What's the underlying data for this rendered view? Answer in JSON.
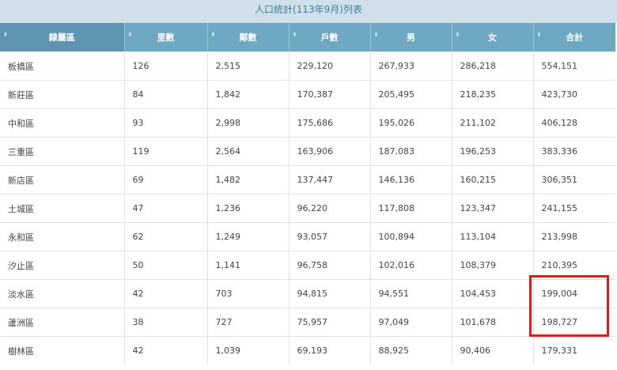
{
  "caption": "人口統計(113年9月)列表",
  "sort_icon": "⬍",
  "headers": [
    {
      "label": "隸屬區",
      "icon": "sort-icon"
    },
    {
      "label": "里數",
      "icon": "sort-icon"
    },
    {
      "label": "鄰數",
      "icon": "sort-icon"
    },
    {
      "label": "戶數",
      "icon": "sort-icon"
    },
    {
      "label": "男",
      "icon": "sort-icon"
    },
    {
      "label": "女",
      "icon": "sort-icon"
    },
    {
      "label": "合計",
      "icon": "sort-icon"
    }
  ],
  "rows": [
    [
      "板橋區",
      "126",
      "2,515",
      "229,120",
      "267,933",
      "286,218",
      "554,151"
    ],
    [
      "新莊區",
      "84",
      "1,842",
      "170,387",
      "205,495",
      "218,235",
      "423,730"
    ],
    [
      "中和區",
      "93",
      "2,998",
      "175,686",
      "195,026",
      "211,102",
      "406,128"
    ],
    [
      "三重區",
      "119",
      "2,564",
      "163,906",
      "187,083",
      "196,253",
      "383,336"
    ],
    [
      "新店區",
      "69",
      "1,482",
      "137,447",
      "146,136",
      "160,215",
      "306,351"
    ],
    [
      "土城區",
      "47",
      "1,236",
      "96,220",
      "117,808",
      "123,347",
      "241,155"
    ],
    [
      "永和區",
      "62",
      "1,249",
      "93,057",
      "100,894",
      "113,104",
      "213,998"
    ],
    [
      "汐止區",
      "50",
      "1,141",
      "96,758",
      "102,016",
      "108,379",
      "210,395"
    ],
    [
      "淡水區",
      "42",
      "703",
      "94,815",
      "94,551",
      "104,453",
      "199,004"
    ],
    [
      "蘆洲區",
      "38",
      "727",
      "75,957",
      "97,049",
      "101,678",
      "198,727"
    ],
    [
      "樹林區",
      "42",
      "1,039",
      "69,193",
      "88,925",
      "90,406",
      "179,331"
    ]
  ],
  "colors": {
    "header_bg": "#6fa8c2",
    "caption_bg": "#cfe0ea",
    "highlight": "#e11b1b"
  }
}
